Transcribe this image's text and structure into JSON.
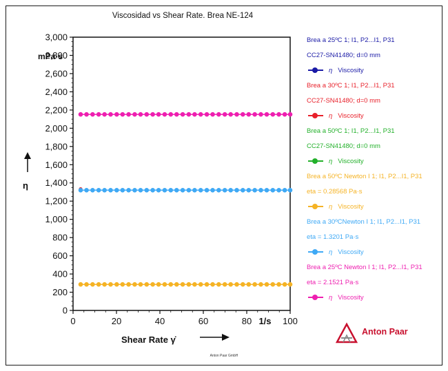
{
  "chart_data": {
    "type": "line",
    "title": "Viscosidad vs Shear Rate. Brea NE-124",
    "xlabel": "Shear Rate",
    "xlabel_symbol": "γ̇",
    "x_unit": "1/s",
    "ylabel": "η",
    "y_unit": "mPa·s",
    "xlim": [
      0,
      100
    ],
    "ylim": [
      0,
      3000
    ],
    "x_ticks": [
      "0",
      "20",
      "40",
      "60",
      "80",
      "100"
    ],
    "y_ticks": [
      "0",
      "200",
      "400",
      "600",
      "800",
      "1,000",
      "1,200",
      "1,400",
      "1,600",
      "1,800",
      "2,000",
      "2,200",
      "2,400",
      "2,600",
      "2,800",
      "3,000"
    ],
    "grid": false,
    "legend_position": "right",
    "x": [
      3.5,
      6.2,
      9.0,
      11.8,
      14.5,
      17.3,
      20.1,
      22.8,
      25.6,
      28.4,
      31.1,
      33.9,
      36.7,
      39.4,
      42.2,
      45.0,
      47.7,
      50.5,
      53.3,
      56.0,
      58.8,
      61.6,
      64.3,
      67.1,
      69.9,
      72.6,
      75.4,
      78.2,
      80.9,
      83.7,
      86.5,
      89.2,
      92.0,
      94.8,
      97.5,
      100
    ],
    "series": [
      {
        "name": "Brea a 25ºC 1; I1, P2...I1, P31",
        "sub": "CC27-SN41480; d=0 mm",
        "marker": "Viscosity",
        "color": "#1a1aa6",
        "style": "measured",
        "points": [
          [
            3.5,
            2152
          ]
        ]
      },
      {
        "name": "Brea a 30ºC 1; I1, P2...I1, P31",
        "sub": "CC27-SN41480; d=0 mm",
        "marker": "Viscosity",
        "color": "#e8202a",
        "style": "measured",
        "points": [
          [
            3.5,
            1333
          ]
        ]
      },
      {
        "name": "Brea a 50ºC 1; I1, P2...I1, P31",
        "sub": "CC27-SN41480; d=0 mm",
        "marker": "Viscosity",
        "color": "#22b02a",
        "style": "measured",
        "points": [
          [
            3.5,
            286
          ]
        ]
      },
      {
        "name": "Brea a 50ºC Newton I 1; I1, P2...I1, P31",
        "sub": "eta = 0.28568 Pa·s",
        "marker": "Viscosity",
        "color": "#f5b325",
        "style": "fit",
        "value": 285.68
      },
      {
        "name": "Brea a 30ºCNewton I 1; I1, P2...I1, P31",
        "sub": "eta = 1.3201 Pa·s",
        "marker": "Viscosity",
        "color": "#3fa9f5",
        "style": "fit",
        "value": 1320.1
      },
      {
        "name": "Brea a 25ºC Newton I 1; I1, P2...I1, P31",
        "sub": "eta = 2.1521 Pa·s",
        "marker": "Viscosity",
        "color": "#ee1fb0",
        "style": "fit",
        "value": 2152.1
      }
    ]
  },
  "legend_eta": "η",
  "brand": "Anton Paar",
  "footer": "Anton Paar GmbH"
}
